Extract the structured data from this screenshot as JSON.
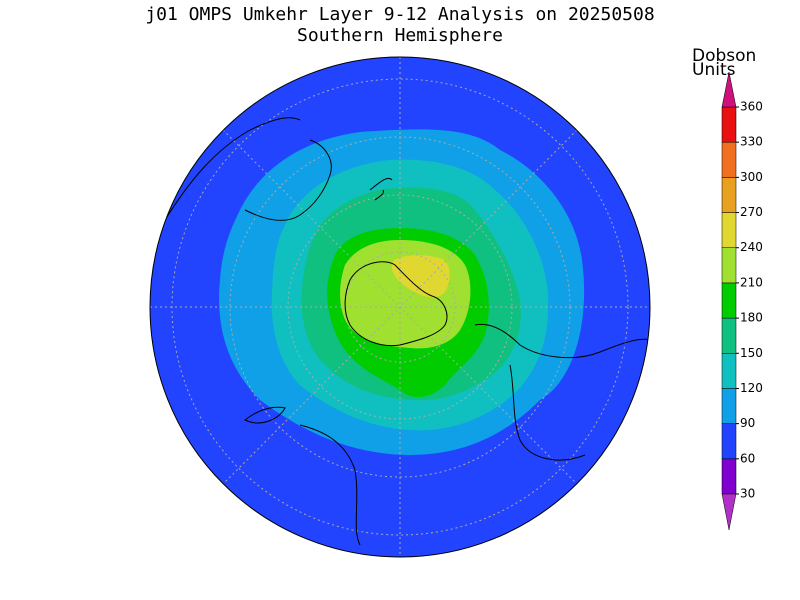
{
  "title": [
    "j01 OMPS Umkehr Layer 9-12 Analysis on 20250508",
    "Southern Hemisphere"
  ],
  "colorbar": {
    "label": [
      "Dobson",
      "Units"
    ],
    "ticks": [
      30,
      60,
      90,
      120,
      150,
      180,
      210,
      240,
      270,
      300,
      330,
      360
    ],
    "colors": [
      "#8000d0",
      "#2244ff",
      "#10a0e8",
      "#10c0c0",
      "#10c080",
      "#00cc00",
      "#a0e030",
      "#e0d830",
      "#e8a020",
      "#f07020",
      "#e81010"
    ],
    "under_color": "#b030c8",
    "over_color": "#d0107a"
  }
}
